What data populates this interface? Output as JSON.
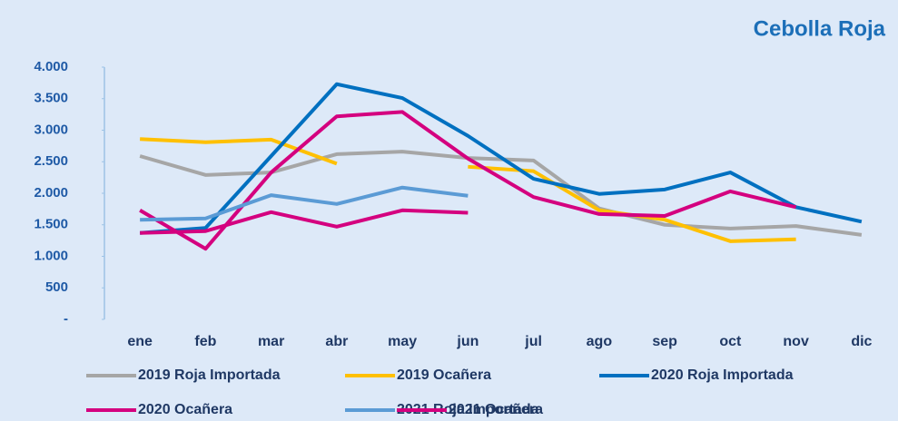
{
  "chart_data": {
    "type": "line",
    "title": "Cebolla Roja",
    "categories": [
      "ene",
      "feb",
      "mar",
      "abr",
      "may",
      "jun",
      "jul",
      "ago",
      "sep",
      "oct",
      "nov",
      "dic"
    ],
    "series": [
      {
        "name": "2019 Roja Importada",
        "color": "#a6a6a6",
        "values": [
          2590,
          2290,
          2330,
          2620,
          2660,
          2560,
          2520,
          1760,
          1500,
          1440,
          1480,
          1340
        ]
      },
      {
        "name": "2019 Ocañera",
        "color": "#ffc000",
        "values": [
          2860,
          2810,
          2850,
          2470,
          null,
          2420,
          2350,
          1730,
          1580,
          1240,
          1270,
          null
        ]
      },
      {
        "name": "2020 Roja Importada",
        "color": "#0070c0",
        "values": [
          1370,
          1450,
          2590,
          3730,
          3510,
          2910,
          2230,
          1990,
          2060,
          2330,
          1780,
          1550
        ]
      },
      {
        "name": "2020 Ocañera",
        "color": "#d4007f",
        "values": [
          1730,
          1120,
          2330,
          3220,
          3290,
          2550,
          1940,
          1670,
          1640,
          2030,
          1780,
          null
        ]
      },
      {
        "name": "2021 Roja Importada",
        "color": "#5b9bd5",
        "values": [
          1580,
          1600,
          1970,
          1830,
          2090,
          1960,
          null,
          null,
          null,
          null,
          null,
          null
        ]
      },
      {
        "name": "2021 Ocañera",
        "color": "#d4007f",
        "values": [
          1370,
          1400,
          1700,
          1470,
          1730,
          1690,
          null,
          null,
          null,
          null,
          null,
          null
        ]
      }
    ],
    "ylim": [
      0,
      4000
    ],
    "yticks": [
      {
        "value": 0,
        "label": "-"
      },
      500,
      {
        "value": 1000,
        "label": "1.000"
      },
      {
        "value": 1500,
        "label": "1.500"
      },
      {
        "value": 2000,
        "label": "2.000"
      },
      {
        "value": 2500,
        "label": "2.500"
      },
      {
        "value": 3000,
        "label": "3.000"
      },
      {
        "value": 3500,
        "label": "3.500"
      },
      {
        "value": 4000,
        "label": "4.000"
      }
    ],
    "grid": false
  }
}
